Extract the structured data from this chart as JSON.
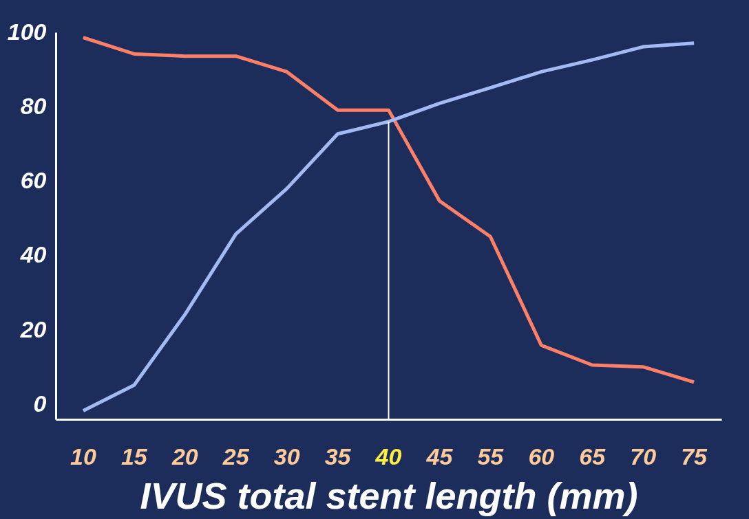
{
  "chart_data": {
    "type": "line",
    "xlabel": "IVUS total stent length (mm)",
    "categories": [
      "10",
      "15",
      "20",
      "25",
      "30",
      "35",
      "40",
      "45",
      "55",
      "60",
      "65",
      "70",
      "75"
    ],
    "series": [
      {
        "color": "#ff8066",
        "values": [
          98.6,
          94.2,
          93.6,
          93.6,
          89.4,
          79.1,
          79.1,
          54.7,
          45.1,
          15.9,
          10.6,
          10.1,
          6.0
        ]
      },
      {
        "color": "#a3bbf2",
        "values": [
          -1.7,
          5.2,
          24.2,
          45.8,
          58.0,
          72.7,
          76.0,
          80.9,
          85.1,
          89.4,
          92.6,
          96.1,
          97.1
        ]
      }
    ],
    "ylim": [
      -4,
      100
    ],
    "yticks": [
      0,
      20,
      40,
      60,
      80,
      100
    ],
    "line_style": "solid",
    "ref_lines": [
      {
        "axis": "x",
        "value": "40",
        "color": "#ffffff"
      }
    ]
  }
}
